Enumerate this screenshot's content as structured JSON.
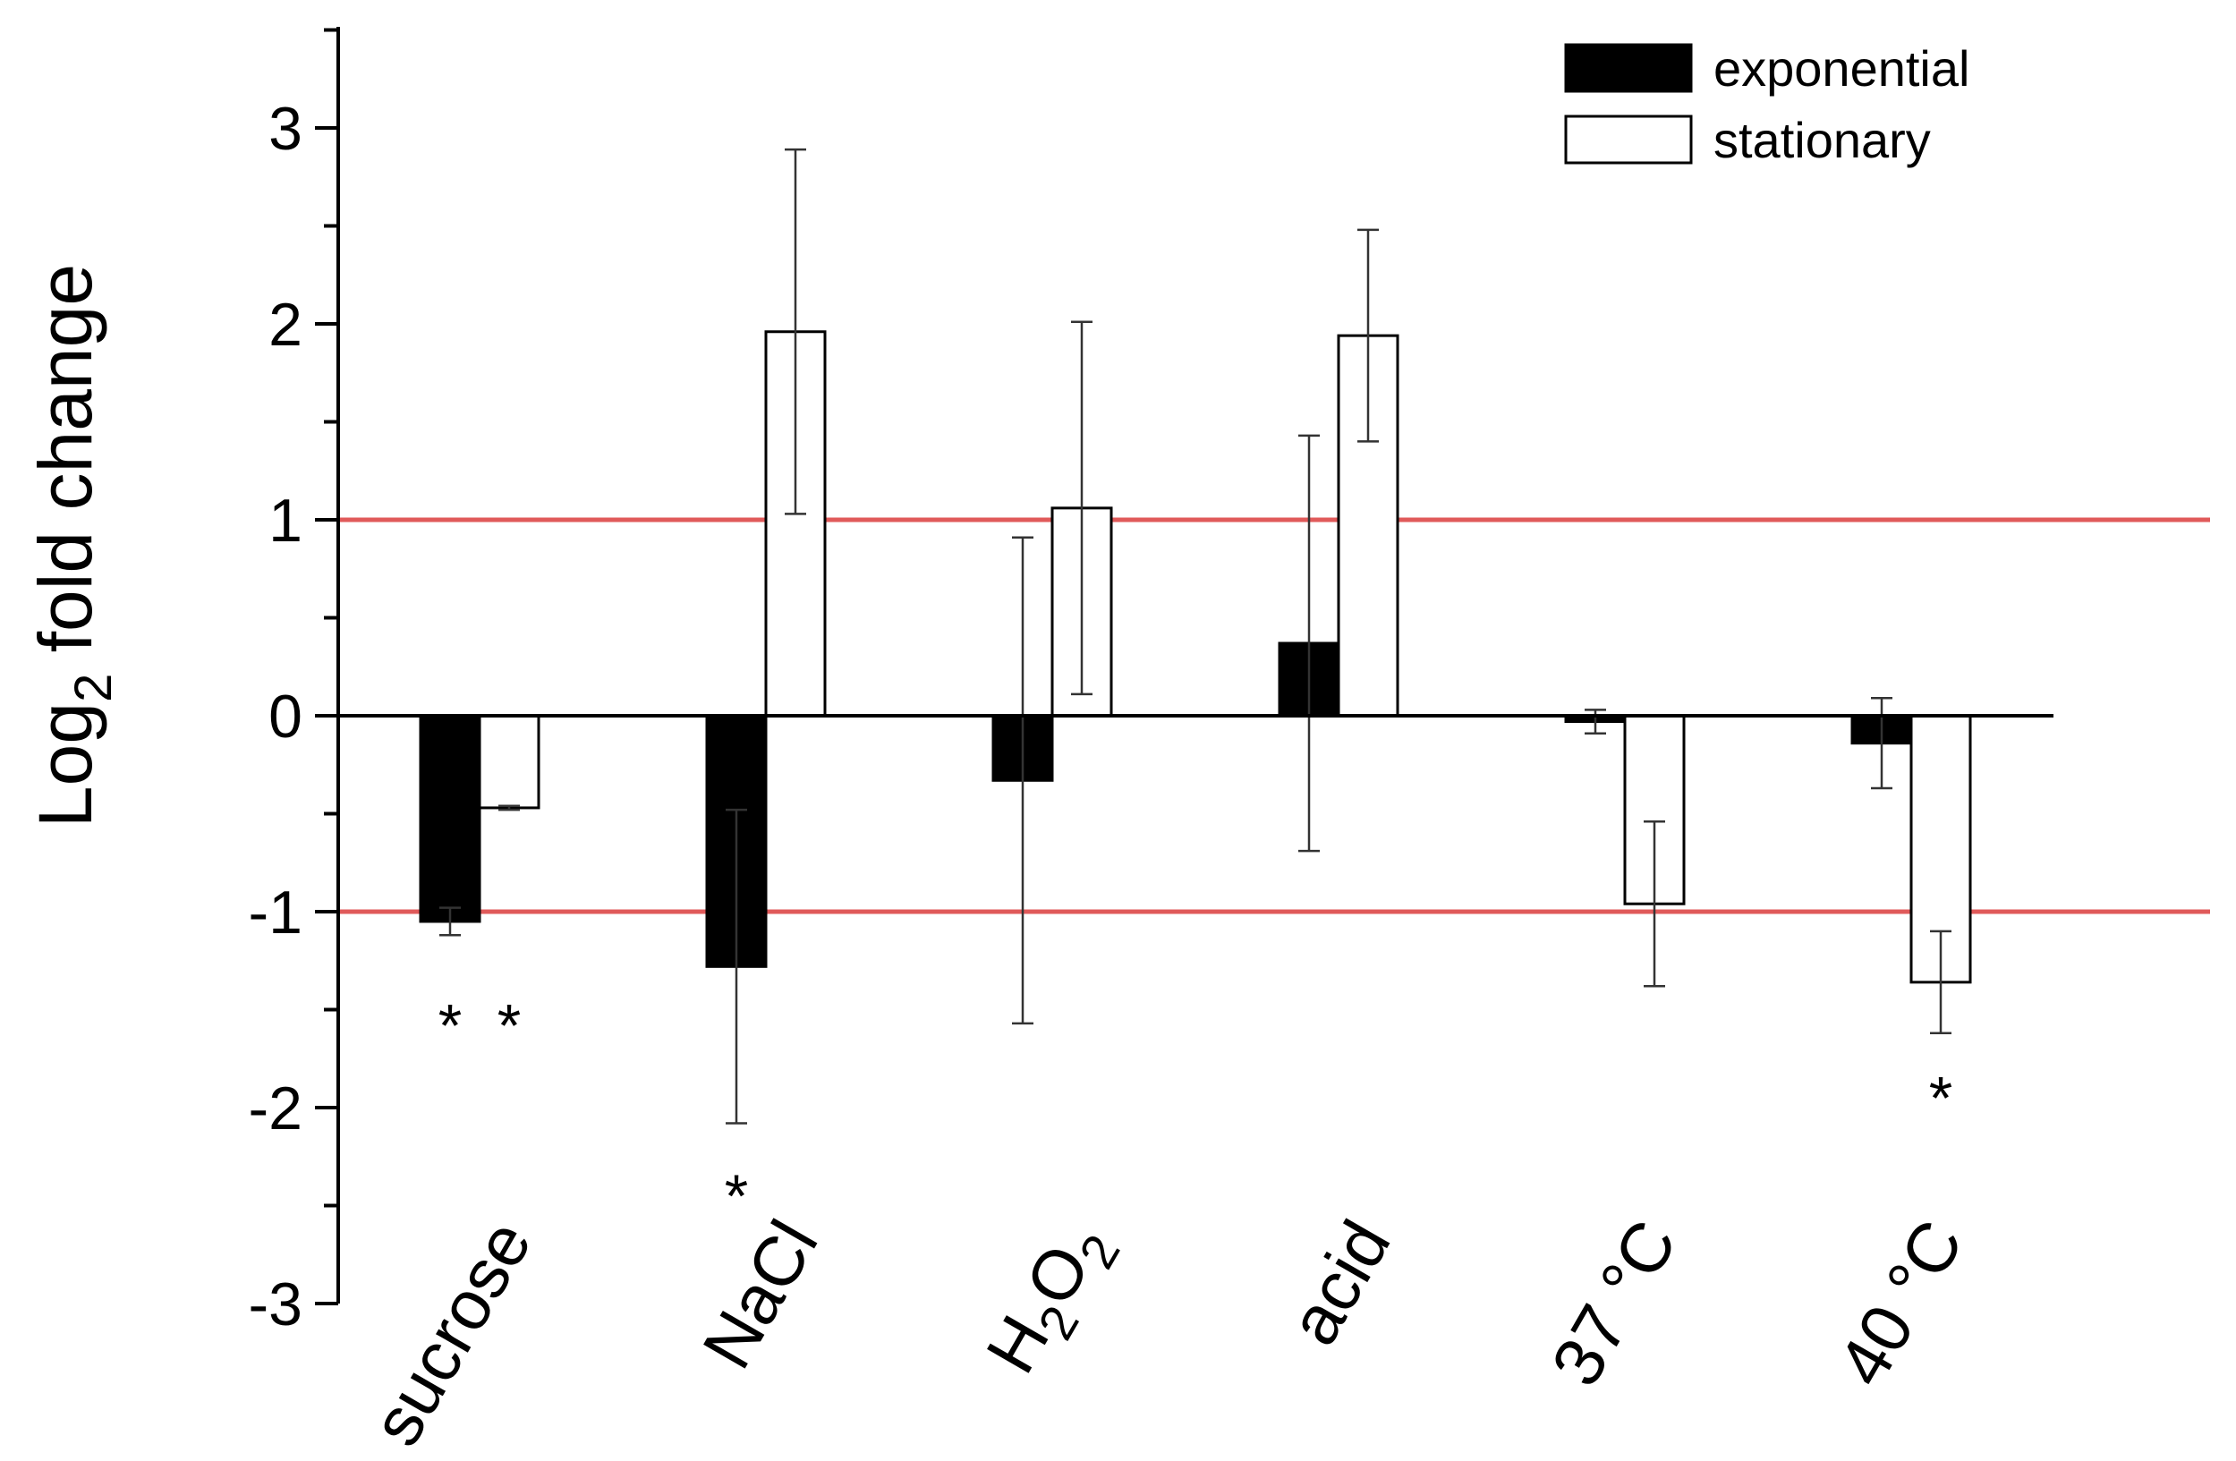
{
  "chart_data": {
    "type": "bar",
    "title": "",
    "xlabel": "",
    "ylabel": "Log",
    "ylabel_subscript": "2",
    "ylabel_suffix": " fold change",
    "ylim": [
      -3,
      3.5
    ],
    "yticks": [
      "-3",
      "-2",
      "-1",
      "0",
      "1",
      "2",
      "3"
    ],
    "grid": false,
    "legend_position": "top-right",
    "categories": [
      {
        "main": "sucrose",
        "sub": "",
        "tail": ""
      },
      {
        "main": "NaCl",
        "sub": "",
        "tail": ""
      },
      {
        "main": "H",
        "sub": "2",
        "tail": "O",
        "sub2": "2"
      },
      {
        "main": "acid",
        "sub": "",
        "tail": ""
      },
      {
        "main": "37 °C",
        "sub": "",
        "tail": ""
      },
      {
        "main": "40 °C",
        "sub": "",
        "tail": ""
      }
    ],
    "series": [
      {
        "name": "exponential",
        "fill": "#000000",
        "values": [
          -1.05,
          -1.28,
          -0.33,
          0.37,
          -0.03,
          -0.14
        ],
        "error": [
          0.07,
          0.8,
          1.24,
          1.06,
          0.06,
          0.23
        ]
      },
      {
        "name": "stationary",
        "fill": "#ffffff",
        "values": [
          -0.47,
          1.96,
          1.06,
          1.94,
          -0.96,
          -1.36
        ],
        "error": [
          0.01,
          0.93,
          0.95,
          0.54,
          0.42,
          0.26
        ]
      }
    ],
    "reference_lines": {
      "values": [
        1,
        -1
      ],
      "color": "#e05a5a"
    },
    "annotations": [
      {
        "text": "*",
        "category": 0,
        "series": 0,
        "y": -1.55
      },
      {
        "text": "*",
        "category": 0,
        "series": 1,
        "y": -1.55
      },
      {
        "text": "*",
        "category": 1,
        "series": 0,
        "y": -2.42
      },
      {
        "text": "*",
        "category": 5,
        "series": 1,
        "y": -1.92
      }
    ]
  }
}
